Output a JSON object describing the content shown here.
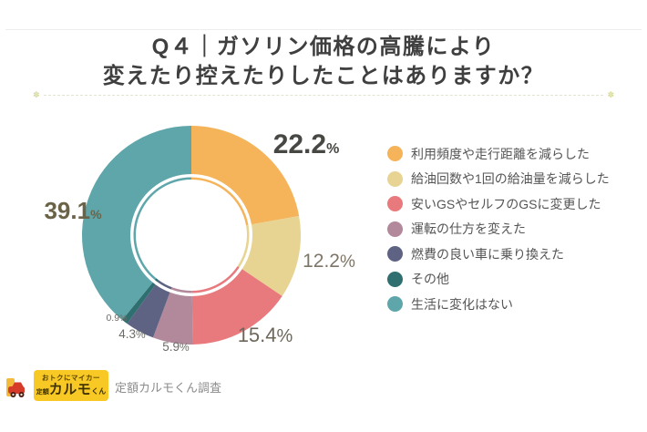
{
  "chart_data": {
    "type": "pie",
    "subtype": "donut",
    "title": "Q４｜ガソリン価格の高騰により 変えたり控えたりしたことはありますか？",
    "title_lines": [
      "Q４｜ガソリン価格の高騰により",
      "変えたり控えたりしたことはありますか？"
    ],
    "unit": "%",
    "start_angle_deg": 0,
    "direction": "clockwise",
    "donut_hole": true,
    "legend_position": "right",
    "series": [
      {
        "label": "利用頻度や走行距離を減らした",
        "value": 22.2,
        "color": "#F5B45A"
      },
      {
        "label": "給油回数や1回の給油量を減らした",
        "value": 12.2,
        "color": "#E7D493"
      },
      {
        "label": "安いGSやセルフのGSに変更した",
        "value": 15.4,
        "color": "#E87A7E"
      },
      {
        "label": "運転の仕方を変えた",
        "value": 5.9,
        "color": "#B2889B"
      },
      {
        "label": "燃費の良い車に乗り換えた",
        "value": 4.3,
        "color": "#5E6384"
      },
      {
        "label": "その他",
        "value": 0.9,
        "color": "#2F6F70"
      },
      {
        "label": "生活に変化はない",
        "value": 39.1,
        "color": "#5FA6AB"
      }
    ]
  },
  "footer": {
    "logo_tagline": "おトクにマイカー",
    "logo_brand_prefix": "定額",
    "logo_brand": "カルモ",
    "logo_brand_suffix": "くん",
    "caption": "定額カルモくん調査"
  },
  "decor": {
    "divider_ornament": "✽"
  }
}
